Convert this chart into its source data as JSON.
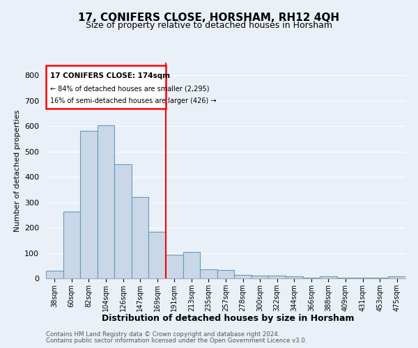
{
  "title": "17, CONIFERS CLOSE, HORSHAM, RH12 4QH",
  "subtitle": "Size of property relative to detached houses in Horsham",
  "xlabel": "Distribution of detached houses by size in Horsham",
  "ylabel": "Number of detached properties",
  "footer_line1": "Contains HM Land Registry data © Crown copyright and database right 2024.",
  "footer_line2": "Contains public sector information licensed under the Open Government Licence v3.0.",
  "categories": [
    "38sqm",
    "60sqm",
    "82sqm",
    "104sqm",
    "126sqm",
    "147sqm",
    "169sqm",
    "191sqm",
    "213sqm",
    "235sqm",
    "257sqm",
    "278sqm",
    "300sqm",
    "322sqm",
    "344sqm",
    "366sqm",
    "388sqm",
    "409sqm",
    "431sqm",
    "453sqm",
    "475sqm"
  ],
  "values": [
    30,
    262,
    580,
    603,
    450,
    320,
    185,
    92,
    103,
    35,
    32,
    14,
    10,
    10,
    8,
    2,
    8,
    2,
    2,
    2,
    7
  ],
  "bar_color": "#c8d8e8",
  "bar_edge_color": "#6699bb",
  "highlight_line_bin": 6,
  "highlight_color": "red",
  "annotation_text_line1": "17 CONIFERS CLOSE: 174sqm",
  "annotation_text_line2": "← 84% of detached houses are smaller (2,295)",
  "annotation_text_line3": "16% of semi-detached houses are larger (426) →",
  "annotation_box_color": "red",
  "ylim": [
    0,
    850
  ],
  "yticks": [
    0,
    100,
    200,
    300,
    400,
    500,
    600,
    700,
    800
  ],
  "background_color": "#eaf0f8",
  "plot_background": "#eaf0f8"
}
